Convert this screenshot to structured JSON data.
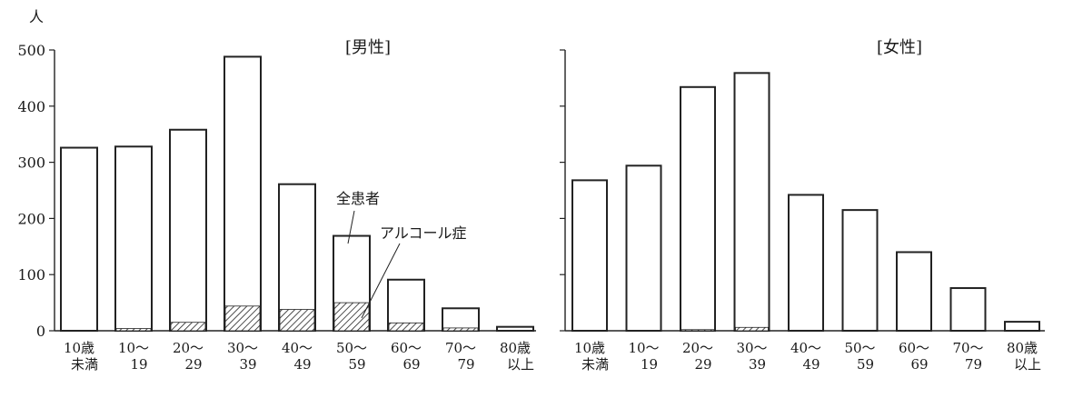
{
  "chart_data": [
    {
      "type": "bar",
      "title": "[男性]",
      "ylabel": "人",
      "ylim": [
        0,
        500
      ],
      "yticks": [
        0,
        100,
        200,
        300,
        400,
        500
      ],
      "categories": [
        [
          "10歳",
          "未満"
        ],
        [
          "10〜",
          "19"
        ],
        [
          "20〜",
          "29"
        ],
        [
          "30〜",
          "39"
        ],
        [
          "40〜",
          "49"
        ],
        [
          "50〜",
          "59"
        ],
        [
          "60〜",
          "69"
        ],
        [
          "70〜",
          "79"
        ],
        [
          "80歳",
          "以上"
        ]
      ],
      "series": [
        {
          "name": "全患者",
          "values": [
            326,
            328,
            358,
            488,
            261,
            169,
            91,
            40,
            7
          ]
        },
        {
          "name": "アルコール症",
          "values": [
            0,
            4,
            15,
            44,
            38,
            50,
            14,
            5,
            0
          ]
        }
      ],
      "annotations": [
        "全患者",
        "アルコール症"
      ]
    },
    {
      "type": "bar",
      "title": "[女性]",
      "ylim": [
        0,
        500
      ],
      "categories": [
        [
          "10歳",
          "未満"
        ],
        [
          "10〜",
          "19"
        ],
        [
          "20〜",
          "29"
        ],
        [
          "30〜",
          "39"
        ],
        [
          "40〜",
          "49"
        ],
        [
          "50〜",
          "59"
        ],
        [
          "60〜",
          "69"
        ],
        [
          "70〜",
          "79"
        ],
        [
          "80歳",
          "以上"
        ]
      ],
      "series": [
        {
          "values": [
            268,
            294,
            434,
            459,
            242,
            215,
            140,
            76,
            16
          ]
        },
        {
          "values": [
            0,
            0,
            2,
            6,
            1,
            1,
            1,
            0,
            0
          ]
        }
      ]
    }
  ]
}
